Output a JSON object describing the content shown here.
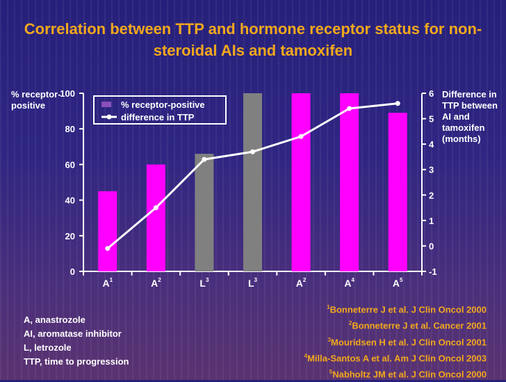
{
  "title": "Correlation between TTP and hormone receptor status for non-steroidal AIs and tamoxifen",
  "chart_data": {
    "type": "bar",
    "categories": [
      {
        "letter": "A",
        "sup": "1"
      },
      {
        "letter": "A",
        "sup": "2"
      },
      {
        "letter": "L",
        "sup": "3"
      },
      {
        "letter": "L",
        "sup": "3"
      },
      {
        "letter": "A",
        "sup": "2"
      },
      {
        "letter": "A",
        "sup": "4"
      },
      {
        "letter": "A",
        "sup": "5"
      }
    ],
    "series": [
      {
        "name": "% receptor-positive",
        "kind": "bar",
        "axis": "left",
        "values": [
          45,
          60,
          66,
          100,
          100,
          100,
          89
        ],
        "colors": [
          "#ff00ff",
          "#ff00ff",
          "#808080",
          "#808080",
          "#ff00ff",
          "#ff00ff",
          "#ff00ff"
        ]
      },
      {
        "name": "difference in TTP",
        "kind": "line",
        "axis": "right",
        "values": [
          -0.1,
          1.5,
          3.4,
          3.7,
          4.3,
          5.4,
          5.6
        ],
        "color": "#ffffff"
      }
    ],
    "ylabel": "% receptor-positive",
    "ylabel2": "Difference in TTP between AI and tamoxifen (months)",
    "ylim": [
      0,
      100
    ],
    "ylim2": [
      -1,
      6
    ],
    "yticks": [
      0,
      20,
      40,
      60,
      80,
      100
    ],
    "yticks2": [
      -1,
      0,
      1,
      2,
      3,
      4,
      5,
      6
    ],
    "legend": [
      "% receptor-positive",
      "difference in TTP"
    ],
    "legend_position": "top-left"
  },
  "abbreviations": [
    "A, anastrozole",
    "AI, aromatase inhibitor",
    "L, letrozole",
    "TTP, time to progression"
  ],
  "references": [
    {
      "num": "1",
      "text": "Bonneterre J et al. J Clin Oncol 2000"
    },
    {
      "num": "2",
      "text": "Bonneterre J et al. Cancer 2001"
    },
    {
      "num": "3",
      "text": "Mouridsen H et al. J Clin Oncol 2001"
    },
    {
      "num": "4",
      "text": "Milla-Santos A et al. Am J Clin Oncol 2003"
    },
    {
      "num": "5",
      "text": "Nabholtz JM et al. J Clin Oncol 2000"
    }
  ]
}
